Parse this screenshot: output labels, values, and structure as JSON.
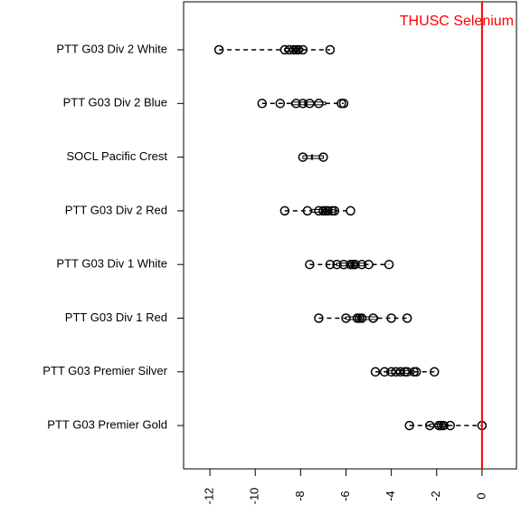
{
  "chart_data": {
    "type": "boxplot",
    "categories": [
      "PTT G03 Div 2 White",
      "PTT G03 Div 2 Blue",
      "SOCL Pacific Crest",
      "PTT G03 Div 2 Red",
      "PTT G03 Div 1 White",
      "PTT G03 Div 1 Red",
      "PTT G03 Premier Silver",
      "PTT G03 Premier Gold"
    ],
    "points": [
      [
        -11.6,
        -8.7,
        -8.5,
        -8.3,
        -8.2,
        -8.1,
        -7.9,
        -6.7
      ],
      [
        -9.7,
        -8.9,
        -8.2,
        -7.9,
        -7.6,
        -7.2,
        -6.2,
        -6.1
      ],
      [
        -7.9,
        -7.0
      ],
      [
        -8.7,
        -7.7,
        -7.2,
        -7.0,
        -6.9,
        -6.8,
        -6.6,
        -6.5,
        -5.8
      ],
      [
        -7.6,
        -6.7,
        -6.4,
        -6.1,
        -5.8,
        -5.7,
        -5.6,
        -5.3,
        -5.0,
        -4.1
      ],
      [
        -7.2,
        -6.0,
        -5.5,
        -5.4,
        -5.3,
        -4.8,
        -4.0,
        -3.3
      ],
      [
        -4.7,
        -4.3,
        -4.0,
        -3.8,
        -3.6,
        -3.4,
        -3.3,
        -3.0,
        -2.9,
        -2.1
      ],
      [
        -3.2,
        -2.3,
        -1.9,
        -1.8,
        -1.7,
        -1.4,
        0
      ]
    ],
    "stats": [
      [
        -11.6,
        -8.7,
        -8.2,
        -7.9,
        -6.7
      ],
      [
        -9.7,
        -8.4,
        -7.8,
        -6.9,
        -6.1
      ],
      [
        -7.9,
        -7.9,
        -7.5,
        -7.0,
        -7.0
      ],
      [
        -8.7,
        -7.5,
        -6.9,
        -6.5,
        -5.8
      ],
      [
        -7.6,
        -6.4,
        -5.7,
        -5.2,
        -4.1
      ],
      [
        -7.2,
        -6.0,
        -5.4,
        -4.6,
        -3.3
      ],
      [
        -4.7,
        -4.2,
        -3.6,
        -3.0,
        -2.1
      ],
      [
        -3.2,
        -2.3,
        -1.8,
        -1.5,
        0
      ]
    ],
    "color": "#000000",
    "xlim": [
      -13.16,
      1.52
    ],
    "xticks": [
      -12,
      -10,
      -8,
      -6,
      -4,
      -2,
      0
    ],
    "reference_line": {
      "value": 0,
      "label": "THUSC Selenium",
      "color": "#ff0000"
    }
  }
}
